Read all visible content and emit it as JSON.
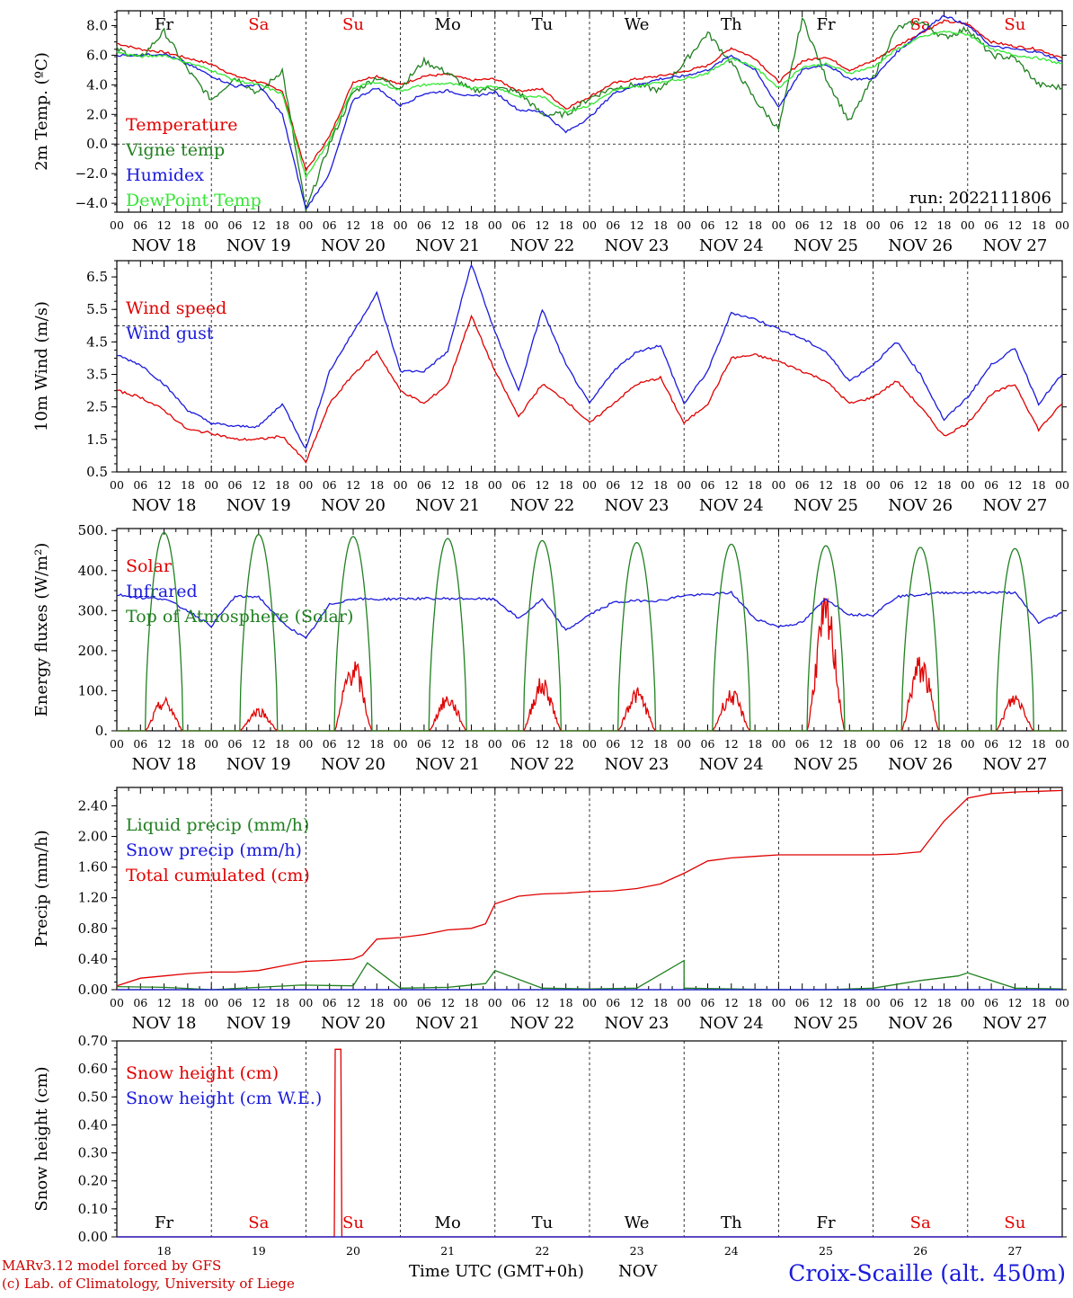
{
  "run_label": "run: 2022111806",
  "dates": [
    "NOV 18",
    "NOV 19",
    "NOV 20",
    "NOV 21",
    "NOV 22",
    "NOV 23",
    "NOV 24",
    "NOV 25",
    "NOV 26",
    "NOV 27"
  ],
  "date_short": [
    "18",
    "19",
    "20",
    "21",
    "22",
    "23",
    "24",
    "25",
    "26",
    "27"
  ],
  "month_label": "NOV",
  "weekdays": [
    {
      "label": "Fr",
      "color": "#000000"
    },
    {
      "label": "Sa",
      "color": "#e00000"
    },
    {
      "label": "Su",
      "color": "#e00000"
    },
    {
      "label": "Mo",
      "color": "#000000"
    },
    {
      "label": "Tu",
      "color": "#000000"
    },
    {
      "label": "We",
      "color": "#000000"
    },
    {
      "label": "Th",
      "color": "#000000"
    },
    {
      "label": "Fr",
      "color": "#000000"
    },
    {
      "label": "Sa",
      "color": "#e00000"
    },
    {
      "label": "Su",
      "color": "#e00000"
    }
  ],
  "hours": [
    "00",
    "06",
    "12",
    "18"
  ],
  "footer": {
    "credit_line1": "MARv3.12 model forced by GFS",
    "credit_line2": "(c) Lab. of Climatology, University of Liege",
    "time_label": "Time UTC (GMT+0h)",
    "station": "Croix-Scaille (alt. 450m)"
  },
  "chart_data": [
    {
      "type": "line",
      "ylabel": "2m Temp. (ºC)",
      "ylim": [
        -4.6,
        9.0
      ],
      "yticks": [
        "8.0",
        "6.0",
        "4.0",
        "2.0",
        "0.0",
        "−2.0",
        "−4.0"
      ],
      "ytick_values": [
        8,
        6,
        4,
        2,
        0,
        -2,
        -4
      ],
      "ref_line": 0,
      "x_unit": "days since Nov 18 00 UTC",
      "series": [
        {
          "name": "Temperature",
          "color": "#e00000",
          "x": [
            0,
            0.25,
            0.5,
            0.75,
            1,
            1.25,
            1.5,
            1.75,
            2,
            2.25,
            2.5,
            2.75,
            3,
            3.25,
            3.5,
            3.75,
            4,
            4.25,
            4.5,
            4.75,
            5,
            5.25,
            5.5,
            5.75,
            6,
            6.25,
            6.5,
            6.75,
            7,
            7.25,
            7.5,
            7.75,
            8,
            8.25,
            8.5,
            8.75,
            9,
            9.25,
            9.5,
            9.75,
            10
          ],
          "y": [
            6.8,
            6.4,
            6.2,
            5.8,
            5.4,
            4.6,
            4.2,
            3.6,
            -1.8,
            0.5,
            4.2,
            4.6,
            4.0,
            4.6,
            4.7,
            4.3,
            4.4,
            3.6,
            3.7,
            2.4,
            3.2,
            4.1,
            4.4,
            4.6,
            4.9,
            5.3,
            6.5,
            5.8,
            4.2,
            5.6,
            5.9,
            5.0,
            5.6,
            6.6,
            7.5,
            8.3,
            8.1,
            6.9,
            6.6,
            6.4,
            5.8
          ]
        },
        {
          "name": "Vigne temp",
          "color": "#208020",
          "x": [
            0,
            0.25,
            0.5,
            0.75,
            1,
            1.25,
            1.5,
            1.75,
            2,
            2.25,
            2.5,
            2.75,
            3,
            3.25,
            3.5,
            3.75,
            4,
            4.25,
            4.5,
            4.75,
            5,
            5.25,
            5.5,
            5.75,
            6,
            6.25,
            6.5,
            6.75,
            7,
            7.25,
            7.5,
            7.75,
            8,
            8.25,
            8.5,
            8.75,
            9,
            9.25,
            9.5,
            9.75,
            10
          ],
          "y": [
            6.4,
            5.8,
            7.6,
            5.0,
            3.0,
            4.5,
            3.4,
            5.0,
            -4.5,
            0.0,
            3.5,
            4.5,
            3.8,
            5.6,
            4.8,
            3.6,
            3.8,
            3.5,
            2.0,
            2.0,
            3.1,
            3.8,
            4.0,
            3.6,
            5.5,
            7.5,
            5.5,
            3.0,
            1.0,
            8.5,
            4.5,
            1.5,
            4.5,
            7.8,
            8.3,
            7.2,
            7.8,
            6.0,
            5.8,
            4.0,
            3.8
          ]
        },
        {
          "name": "Humidex",
          "color": "#1a1adc",
          "x": [
            0,
            0.25,
            0.5,
            0.75,
            1,
            1.25,
            1.5,
            1.75,
            2,
            2.25,
            2.5,
            2.75,
            3,
            3.25,
            3.5,
            3.75,
            4,
            4.25,
            4.5,
            4.75,
            5,
            5.25,
            5.5,
            5.75,
            6,
            6.25,
            6.5,
            6.75,
            7,
            7.25,
            7.5,
            7.75,
            8,
            8.25,
            8.5,
            8.75,
            9,
            9.25,
            9.5,
            9.75,
            10
          ],
          "y": [
            6.0,
            6.0,
            6.1,
            5.4,
            4.6,
            3.9,
            4.0,
            2.0,
            -4.4,
            -2.0,
            3.0,
            3.8,
            2.6,
            3.4,
            3.6,
            3.2,
            3.5,
            2.3,
            2.2,
            0.8,
            1.8,
            3.4,
            4.0,
            4.4,
            4.6,
            5.0,
            6.0,
            5.0,
            2.5,
            5.0,
            5.4,
            4.4,
            4.4,
            6.2,
            7.5,
            8.7,
            8.0,
            6.6,
            6.4,
            6.2,
            5.6
          ]
        },
        {
          "name": "DewPoint Temp",
          "color": "#33e633",
          "x": [
            0,
            0.25,
            0.5,
            0.75,
            1,
            1.25,
            1.5,
            1.75,
            2,
            2.25,
            2.5,
            2.75,
            3,
            3.25,
            3.5,
            3.75,
            4,
            4.25,
            4.5,
            4.75,
            5,
            5.25,
            5.5,
            5.75,
            6,
            6.25,
            6.5,
            6.75,
            7,
            7.25,
            7.5,
            7.75,
            8,
            8.25,
            8.5,
            8.75,
            9,
            9.25,
            9.5,
            9.75,
            10
          ],
          "y": [
            6.2,
            5.9,
            6.0,
            5.5,
            5.0,
            4.3,
            4.0,
            3.4,
            -2.2,
            0.2,
            3.8,
            4.2,
            3.6,
            4.0,
            4.1,
            3.8,
            3.9,
            3.2,
            3.2,
            2.2,
            2.6,
            3.6,
            3.9,
            4.2,
            4.4,
            4.8,
            5.8,
            5.2,
            3.8,
            5.2,
            5.4,
            4.8,
            5.2,
            6.4,
            7.2,
            7.6,
            7.4,
            6.4,
            6.0,
            5.8,
            5.4
          ]
        }
      ]
    },
    {
      "type": "line",
      "ylabel": "10m Wind (m/s)",
      "ylim": [
        0.5,
        7.0
      ],
      "yticks": [
        "6.5",
        "5.5",
        "4.5",
        "3.5",
        "2.5",
        "1.5",
        "0.5"
      ],
      "ytick_values": [
        6.5,
        5.5,
        4.5,
        3.5,
        2.5,
        1.5,
        0.5
      ],
      "ref_line": 5.0,
      "series": [
        {
          "name": "Wind speed",
          "color": "#e00000",
          "x": [
            0,
            0.25,
            0.5,
            0.75,
            1,
            1.25,
            1.5,
            1.75,
            2,
            2.25,
            2.5,
            2.75,
            3,
            3.25,
            3.5,
            3.75,
            4,
            4.25,
            4.5,
            4.75,
            5,
            5.25,
            5.5,
            5.75,
            6,
            6.25,
            6.5,
            6.75,
            7,
            7.25,
            7.5,
            7.75,
            8,
            8.25,
            8.5,
            8.75,
            9,
            9.25,
            9.5,
            9.75,
            10
          ],
          "y": [
            3.0,
            2.8,
            2.4,
            1.8,
            1.7,
            1.5,
            1.5,
            1.6,
            0.8,
            2.6,
            3.5,
            4.2,
            3.0,
            2.6,
            3.2,
            5.3,
            3.6,
            2.2,
            3.2,
            2.7,
            2.0,
            2.6,
            3.2,
            3.4,
            2.0,
            2.6,
            4.0,
            4.1,
            3.9,
            3.6,
            3.3,
            2.6,
            2.8,
            3.3,
            2.5,
            1.6,
            2.0,
            2.9,
            3.2,
            1.8,
            2.6
          ]
        },
        {
          "name": "Wind gust",
          "color": "#1a1adc",
          "x": [
            0,
            0.25,
            0.5,
            0.75,
            1,
            1.25,
            1.5,
            1.75,
            2,
            2.25,
            2.5,
            2.75,
            3,
            3.25,
            3.5,
            3.75,
            4,
            4.25,
            4.5,
            4.75,
            5,
            5.25,
            5.5,
            5.75,
            6,
            6.25,
            6.5,
            6.75,
            7,
            7.25,
            7.5,
            7.75,
            8,
            8.25,
            8.5,
            8.75,
            9,
            9.25,
            9.5,
            9.75,
            10
          ],
          "y": [
            4.1,
            3.8,
            3.2,
            2.4,
            2.0,
            1.9,
            1.9,
            2.6,
            1.2,
            3.6,
            4.8,
            6.0,
            3.6,
            3.6,
            4.2,
            6.9,
            4.8,
            3.0,
            5.5,
            3.8,
            2.6,
            3.6,
            4.2,
            4.4,
            2.6,
            3.6,
            5.4,
            5.2,
            4.9,
            4.6,
            4.2,
            3.3,
            3.8,
            4.5,
            3.5,
            2.1,
            2.8,
            3.8,
            4.3,
            2.6,
            3.5
          ]
        }
      ]
    },
    {
      "type": "line",
      "ylabel": "Energy fluxes (W/m²)",
      "ylim": [
        0,
        505
      ],
      "yticks": [
        "500.",
        "400.",
        "300.",
        "200.",
        "100.",
        "0."
      ],
      "ytick_values": [
        500,
        400,
        300,
        200,
        100,
        0
      ],
      "series": [
        {
          "name": "Solar",
          "color": "#e00000",
          "daily_peaks": [
            68,
            48,
            150,
            75,
            110,
            88,
            85,
            275,
            155,
            78
          ]
        },
        {
          "name": "Infrared",
          "color": "#1a1adc",
          "x": [
            0,
            0.25,
            0.5,
            0.75,
            1,
            1.25,
            1.5,
            1.75,
            2,
            2.25,
            2.5,
            2.75,
            3,
            3.25,
            3.5,
            3.75,
            4,
            4.25,
            4.5,
            4.75,
            5,
            5.25,
            5.5,
            5.75,
            6,
            6.25,
            6.5,
            6.75,
            7,
            7.25,
            7.5,
            7.75,
            8,
            8.25,
            8.5,
            8.75,
            9,
            9.25,
            9.5,
            9.75,
            10
          ],
          "y": [
            340,
            332,
            330,
            300,
            262,
            335,
            335,
            270,
            230,
            315,
            330,
            328,
            330,
            330,
            330,
            330,
            328,
            280,
            328,
            250,
            290,
            320,
            325,
            325,
            338,
            340,
            345,
            280,
            260,
            270,
            330,
            290,
            290,
            335,
            340,
            345,
            345,
            345,
            345,
            270,
            295
          ]
        },
        {
          "name": "Top of Atmosphere (Solar)",
          "color": "#208020",
          "daily_peaks": [
            495,
            490,
            485,
            480,
            475,
            470,
            466,
            462,
            458,
            455
          ]
        }
      ]
    },
    {
      "type": "line",
      "ylabel": "Precip (mm/h)",
      "ylim": [
        0,
        2.64
      ],
      "yticks": [
        "2.40",
        "2.00",
        "1.60",
        "1.20",
        "0.80",
        "0.40",
        "0.00"
      ],
      "ytick_values": [
        2.4,
        2.0,
        1.6,
        1.2,
        0.8,
        0.4,
        0.0
      ],
      "series": [
        {
          "name": "Liquid precip (mm/h)",
          "color": "#208020",
          "x": [
            0,
            0.5,
            1,
            1.5,
            1.95,
            2.5,
            2.65,
            3,
            3.5,
            3.9,
            4,
            4.5,
            5,
            5.5,
            6,
            6,
            6.5,
            7,
            7.5,
            8,
            8.5,
            8.9,
            9,
            9.5,
            10
          ],
          "y": [
            0.04,
            0.03,
            0.0,
            0.03,
            0.06,
            0.05,
            0.35,
            0.02,
            0.03,
            0.08,
            0.25,
            0.02,
            0.01,
            0.02,
            0.38,
            0.02,
            0.01,
            0.0,
            0.0,
            0.02,
            0.12,
            0.18,
            0.22,
            0.02,
            0.01
          ]
        },
        {
          "name": "Snow precip (mm/h)",
          "color": "#1a1adc",
          "x": [
            0,
            10
          ],
          "y": [
            0,
            0
          ]
        },
        {
          "name": "Total cumulated (cm)",
          "color": "#e00000",
          "x": [
            0,
            0.25,
            0.5,
            0.75,
            1,
            1.25,
            1.5,
            1.75,
            2,
            2.25,
            2.5,
            2.6,
            2.75,
            3,
            3.25,
            3.5,
            3.75,
            3.9,
            4,
            4.25,
            4.5,
            4.75,
            5,
            5.25,
            5.5,
            5.75,
            6,
            6.25,
            6.5,
            6.75,
            7,
            7.25,
            7.5,
            7.75,
            8,
            8.25,
            8.5,
            8.75,
            9,
            9.25,
            9.5,
            9.75,
            10
          ],
          "y": [
            0.05,
            0.15,
            0.18,
            0.21,
            0.23,
            0.23,
            0.25,
            0.31,
            0.37,
            0.38,
            0.4,
            0.45,
            0.66,
            0.68,
            0.72,
            0.78,
            0.8,
            0.86,
            1.12,
            1.22,
            1.25,
            1.26,
            1.28,
            1.29,
            1.32,
            1.38,
            1.52,
            1.68,
            1.72,
            1.74,
            1.76,
            1.76,
            1.76,
            1.76,
            1.76,
            1.77,
            1.8,
            2.2,
            2.5,
            2.56,
            2.58,
            2.59,
            2.6
          ]
        }
      ]
    },
    {
      "type": "line",
      "ylabel": "Snow height (cm)",
      "ylim": [
        0,
        0.7
      ],
      "yticks": [
        "0.70",
        "0.60",
        "0.50",
        "0.40",
        "0.30",
        "0.20",
        "0.10",
        "0.00"
      ],
      "ytick_values": [
        0.7,
        0.6,
        0.5,
        0.4,
        0.3,
        0.2,
        0.1,
        0.0
      ],
      "series": [
        {
          "name": "Snow height (cm)",
          "color": "#e00000",
          "x": [
            0,
            2.3,
            2.31,
            2.33,
            2.35,
            2.37,
            2.38,
            10
          ],
          "y": [
            0,
            0,
            0.67,
            0.67,
            0.67,
            0.67,
            0,
            0
          ]
        },
        {
          "name": "Snow height (cm W.E.)",
          "color": "#1a1adc",
          "x": [
            0,
            10
          ],
          "y": [
            0,
            0
          ]
        }
      ]
    }
  ]
}
